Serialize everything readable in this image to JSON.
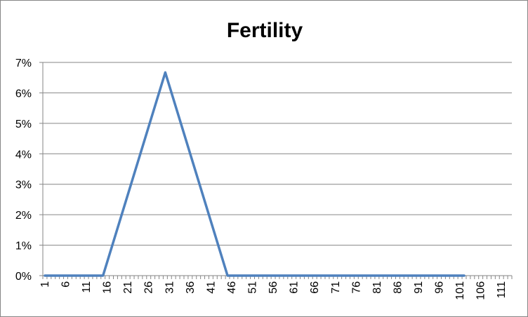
{
  "chart_data": {
    "type": "line",
    "title": "Fertility",
    "xlabel": "",
    "ylabel": "",
    "x_categories_start": 1,
    "x_categories_end": 113,
    "x_tick_labels": [
      "1",
      "6",
      "11",
      "16",
      "21",
      "26",
      "31",
      "36",
      "41",
      "46",
      "51",
      "56",
      "61",
      "66",
      "71",
      "76",
      "81",
      "86",
      "91",
      "96",
      "101",
      "106",
      "111"
    ],
    "y_tick_labels": [
      "0%",
      "1%",
      "2%",
      "3%",
      "4%",
      "5%",
      "6%",
      "7%"
    ],
    "ylim": [
      0,
      0.07
    ],
    "grid": true,
    "legend": "none",
    "series": [
      {
        "color": "#4F81BD",
        "points": [
          {
            "x": 1,
            "y": 0
          },
          {
            "x": 15,
            "y": 0
          },
          {
            "x": 30,
            "y": 0.0667
          },
          {
            "x": 45,
            "y": 0
          },
          {
            "x": 102,
            "y": 0
          }
        ]
      }
    ]
  }
}
